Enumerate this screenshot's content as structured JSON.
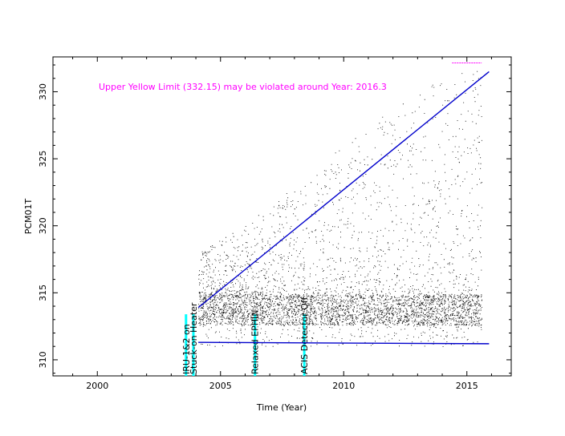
{
  "chart_data": {
    "type": "scatter",
    "title": "",
    "xlabel": "Time (Year)",
    "ylabel": "PCM01T",
    "xlim": [
      1998.2,
      2016.8
    ],
    "ylim": [
      308.8,
      332.6
    ],
    "x_ticks": [
      2000,
      2005,
      2010,
      2015
    ],
    "y_ticks": [
      310,
      315,
      320,
      325,
      330
    ],
    "grid": false,
    "annotation": {
      "text": "Upper Yellow  Limit (332.15) may be violated around Year: 2016.3",
      "color": "#ff00ff"
    },
    "events": [
      {
        "year": 2003.6,
        "label": "IRU-1&2 on"
      },
      {
        "year": 2003.9,
        "label": "Stuck-on Heater"
      },
      {
        "year": 2006.4,
        "label": "Relaxed EPHIN"
      },
      {
        "year": 2008.4,
        "label": "ACIS Detector Off"
      }
    ],
    "series": [
      {
        "kind": "trend_line",
        "color": "#0000cc",
        "points": [
          [
            2004.1,
            313.9
          ],
          [
            2015.9,
            331.5
          ]
        ]
      },
      {
        "kind": "trend_line",
        "color": "#0000cc",
        "points": [
          [
            2004.1,
            311.3
          ],
          [
            2015.9,
            311.2
          ]
        ]
      },
      {
        "kind": "scatter",
        "color": "#000000",
        "x_range": [
          2004.1,
          2015.6
        ],
        "dense_band": [
          312.6,
          314.8
        ],
        "upper_envelope": [
          [
            2004.1,
            318
          ],
          [
            2006,
            320
          ],
          [
            2008,
            323
          ],
          [
            2010,
            326
          ],
          [
            2012,
            329
          ],
          [
            2014,
            331
          ],
          [
            2015.6,
            332
          ]
        ]
      }
    ],
    "limit_marker": {
      "year": 2015.0,
      "value": 332.15,
      "color": "#ff00ff"
    },
    "event_bar_color": "#00ffff"
  }
}
